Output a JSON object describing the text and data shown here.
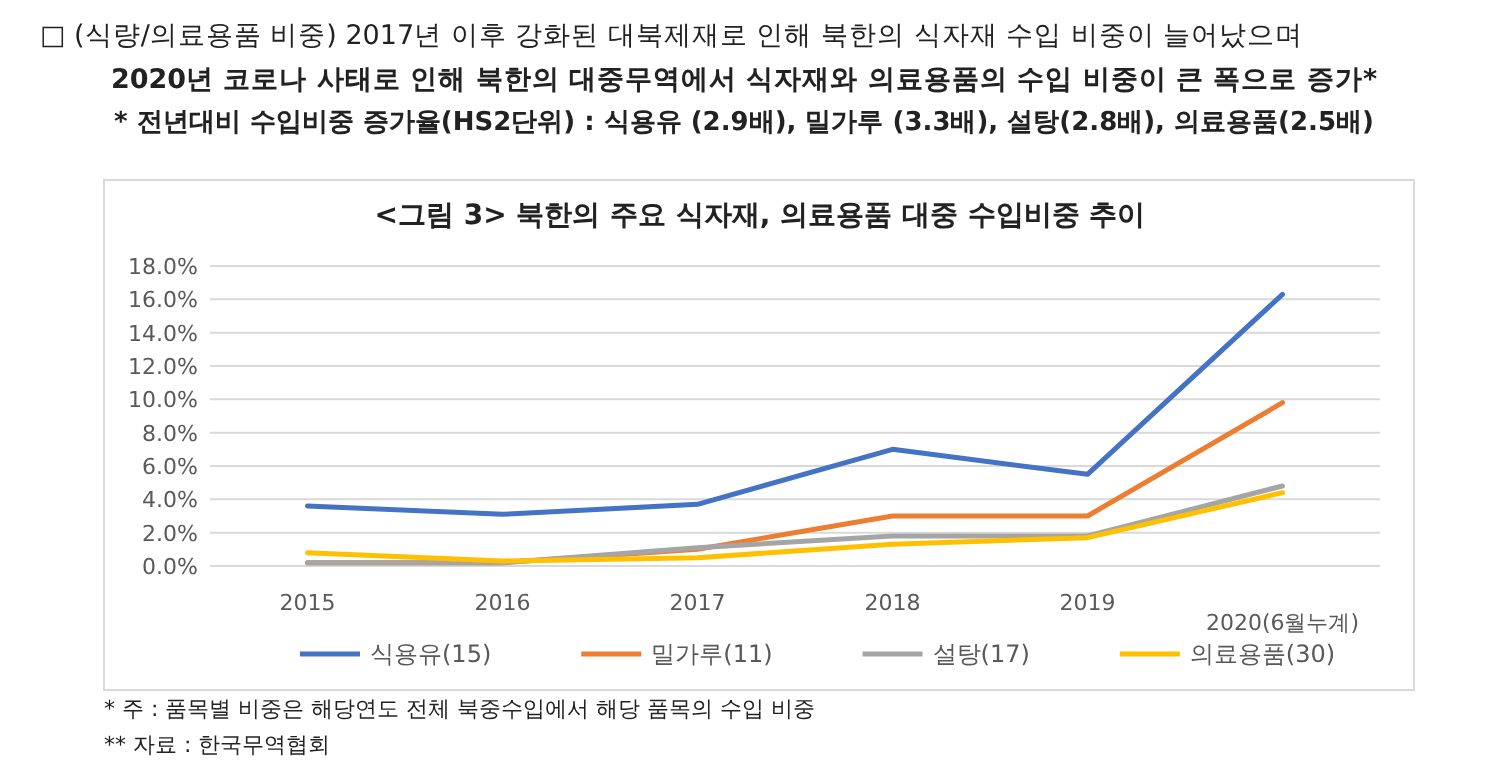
{
  "chart_data": {
    "type": "line",
    "title": "<그림 3> 북한의 주요 식자재, 의료용품 대중 수입비중 추이",
    "annotations": [
      "□ (식량/의료용품 비중) 2017년 이후 강화된 대북제재로 인해 북한의 식자재 수입 비중이 늘어났으며",
      "2020년 코로나 사태로 인해 북한의 대중무역에서 식자재와 의료용품의 수입 비중이 큰 폭으로 증가*",
      "* 전년대비 수입비중 증가율(HS2단위) : 식용유 (2.9배), 밀가루 (3.3배), 설탕(2.8배), 의료용품(2.5배)",
      "* 주 : 품목별 비중은 해당연도 전체 북중수입에서 해당 품목의 수입 비중",
      "** 자료 : 한국무역협회"
    ],
    "categories": [
      "2015",
      "2016",
      "2017",
      "2018",
      "2019",
      "2020(6월누계)"
    ],
    "series": [
      {
        "name": "식용유(15)",
        "color": "#4472c4",
        "values": [
          3.6,
          3.1,
          3.7,
          7.0,
          5.5,
          16.3
        ]
      },
      {
        "name": "밀가루(11)",
        "color": "#ed7d31",
        "values": [
          0.2,
          0.2,
          1.0,
          3.0,
          3.0,
          9.8
        ]
      },
      {
        "name": "설탕(17)",
        "color": "#a5a5a5",
        "values": [
          0.2,
          0.2,
          1.1,
          1.8,
          1.8,
          4.8
        ]
      },
      {
        "name": "의료용품(30)",
        "color": "#ffc000",
        "values": [
          0.8,
          0.3,
          0.5,
          1.3,
          1.7,
          4.4
        ]
      }
    ],
    "ylim": [
      0,
      18
    ],
    "yticks": [
      {
        "value": 0,
        "label": "0.0%"
      },
      {
        "value": 2,
        "label": "2.0%"
      },
      {
        "value": 4,
        "label": "4.0%"
      },
      {
        "value": 6,
        "label": "6.0%"
      },
      {
        "value": 8,
        "label": "8.0%"
      },
      {
        "value": 10,
        "label": "10.0%"
      },
      {
        "value": 12,
        "label": "12.0%"
      },
      {
        "value": 14,
        "label": "14.0%"
      },
      {
        "value": 16,
        "label": "16.0%"
      },
      {
        "value": 18,
        "label": "18.0%"
      }
    ],
    "grid": "y",
    "legend": "bottom",
    "marker": "none",
    "line_style": "solid"
  }
}
